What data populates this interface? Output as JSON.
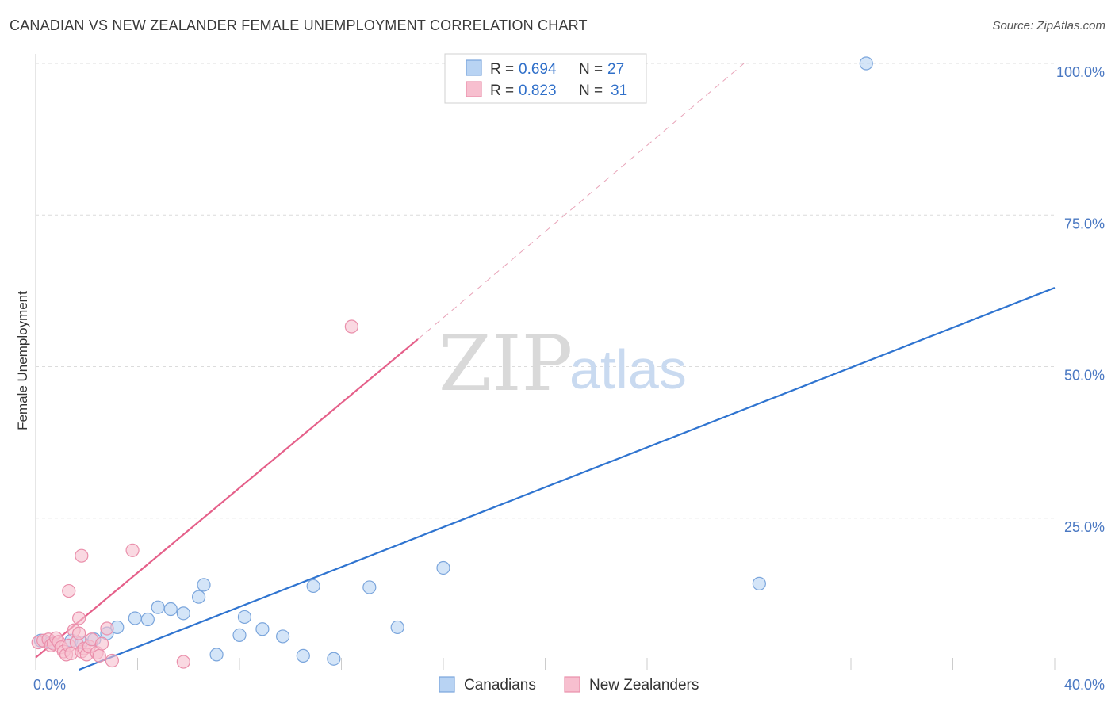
{
  "title": "CANADIAN VS NEW ZEALANDER FEMALE UNEMPLOYMENT CORRELATION CHART",
  "source": "Source: ZipAtlas.com",
  "watermark": {
    "zip": "ZIP",
    "atlas": "atlas"
  },
  "colors": {
    "canadians_fill": "#b8d3f3",
    "canadians_stroke": "#7aa5dc",
    "canadians_line": "#2f74d0",
    "nz_fill": "#f7bfcf",
    "nz_stroke": "#ea8fab",
    "nz_line": "#e5608a",
    "grid": "#dcdcdc",
    "tick_text": "#4a78c2"
  },
  "legend": {
    "rows": [
      {
        "series": "Canadians",
        "r_label": "R = ",
        "r_value": "0.694",
        "n_label": "N = ",
        "n_value": "27"
      },
      {
        "series": "New Zealanders",
        "r_label": "R = ",
        "r_value": "0.823",
        "n_label": "N = ",
        "n_value": "31"
      }
    ]
  },
  "chart_data": {
    "type": "scatter",
    "xlabel": "",
    "ylabel": "Female Unemployment",
    "xlim": [
      0,
      40
    ],
    "ylim": [
      0,
      100
    ],
    "x_tick_labels": {
      "min": "0.0%",
      "max": "40.0%"
    },
    "y_ticks": [
      {
        "value": 25,
        "label": "25.0%"
      },
      {
        "value": 50,
        "label": "50.0%"
      },
      {
        "value": 75,
        "label": "75.0%"
      },
      {
        "value": 100,
        "label": "100.0%"
      }
    ],
    "series": [
      {
        "name": "Canadians",
        "points": [
          [
            0.2,
            4.8
          ],
          [
            0.6,
            4.5
          ],
          [
            1.4,
            4.8
          ],
          [
            1.8,
            4.5
          ],
          [
            2.3,
            5.0
          ],
          [
            2.8,
            6.0
          ],
          [
            3.2,
            7.0
          ],
          [
            3.9,
            8.5
          ],
          [
            4.4,
            8.3
          ],
          [
            4.8,
            10.3
          ],
          [
            5.3,
            10.0
          ],
          [
            5.8,
            9.3
          ],
          [
            6.4,
            12.0
          ],
          [
            6.6,
            14.0
          ],
          [
            7.1,
            2.5
          ],
          [
            8.0,
            5.7
          ],
          [
            8.2,
            8.7
          ],
          [
            8.9,
            6.7
          ],
          [
            9.7,
            5.5
          ],
          [
            10.5,
            2.3
          ],
          [
            10.9,
            13.8
          ],
          [
            11.7,
            1.8
          ],
          [
            13.1,
            13.6
          ],
          [
            14.2,
            7.0
          ],
          [
            16.0,
            16.8
          ],
          [
            28.4,
            14.2
          ],
          [
            32.6,
            100.0
          ]
        ],
        "trendline": {
          "x": [
            1.7,
            40.0
          ],
          "y": [
            0.0,
            63.0
          ]
        }
      },
      {
        "name": "New Zealanders",
        "points": [
          [
            0.1,
            4.5
          ],
          [
            0.3,
            4.8
          ],
          [
            0.5,
            5.0
          ],
          [
            0.6,
            4.0
          ],
          [
            0.7,
            4.3
          ],
          [
            0.8,
            5.2
          ],
          [
            0.9,
            4.6
          ],
          [
            1.0,
            3.7
          ],
          [
            1.1,
            3.0
          ],
          [
            1.2,
            2.5
          ],
          [
            1.3,
            4.0
          ],
          [
            1.4,
            2.7
          ],
          [
            1.5,
            6.5
          ],
          [
            1.6,
            4.5
          ],
          [
            1.7,
            6.0
          ],
          [
            1.8,
            3.0
          ],
          [
            1.9,
            3.5
          ],
          [
            2.0,
            2.5
          ],
          [
            2.1,
            3.8
          ],
          [
            2.2,
            5.0
          ],
          [
            2.4,
            2.8
          ],
          [
            2.5,
            2.3
          ],
          [
            2.6,
            4.3
          ],
          [
            2.8,
            6.8
          ],
          [
            1.3,
            13.0
          ],
          [
            1.8,
            18.8
          ],
          [
            1.7,
            8.5
          ],
          [
            3.0,
            1.5
          ],
          [
            3.8,
            19.7
          ],
          [
            5.8,
            1.3
          ],
          [
            12.4,
            56.6
          ]
        ],
        "trendline": {
          "x": [
            0.0,
            15.0
          ],
          "y": [
            2.0,
            54.5
          ]
        },
        "trendline_extension": {
          "x": [
            15.0,
            27.8
          ],
          "y": [
            54.5,
            100.0
          ]
        }
      }
    ],
    "bottom_legend": [
      "Canadians",
      "New Zealanders"
    ]
  }
}
